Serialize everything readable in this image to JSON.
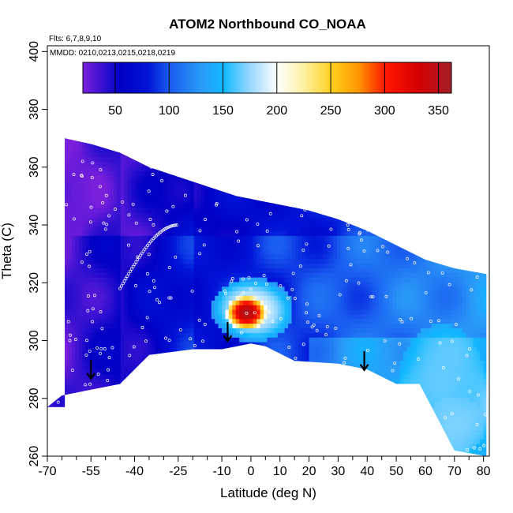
{
  "chart_data": {
    "type": "heatmap",
    "title": "ATOM2 Northbound CO_NOAA",
    "subtitle_flights": "Flts: 6,7,8,9,10",
    "subtitle_dates": "MMDD: 0210,0213,0215,0218,0219",
    "xlabel": "Latitude (deg N)",
    "ylabel": "Theta (C)",
    "xlim": [
      -70,
      82
    ],
    "ylim": [
      260,
      402
    ],
    "x_ticks": [
      -70,
      -55,
      -40,
      -25,
      -10,
      0,
      10,
      20,
      30,
      40,
      50,
      60,
      70,
      80
    ],
    "x_minor_ticks": [
      -65,
      -60,
      -50,
      -45,
      -35,
      -30,
      -20,
      -15,
      -5,
      5,
      15,
      25,
      35,
      45,
      55,
      65,
      75
    ],
    "y_ticks": [
      260,
      280,
      300,
      320,
      340,
      360,
      380,
      400
    ],
    "colorbar": {
      "range": [
        20,
        362
      ],
      "ticks": [
        50,
        100,
        150,
        200,
        250,
        300,
        350
      ],
      "colors": [
        {
          "v": 20,
          "c": "#7a1fdc"
        },
        {
          "v": 40,
          "c": "#2e0fd0"
        },
        {
          "v": 55,
          "c": "#0000c4"
        },
        {
          "v": 80,
          "c": "#0014d8"
        },
        {
          "v": 100,
          "c": "#1a5cf0"
        },
        {
          "v": 130,
          "c": "#2a9cf8"
        },
        {
          "v": 150,
          "c": "#10b8ff"
        },
        {
          "v": 175,
          "c": "#9ad8ff"
        },
        {
          "v": 200,
          "c": "#ffffff"
        },
        {
          "v": 225,
          "c": "#fff0a0"
        },
        {
          "v": 250,
          "c": "#ffd020"
        },
        {
          "v": 275,
          "c": "#ff9800"
        },
        {
          "v": 300,
          "c": "#ff1800"
        },
        {
          "v": 330,
          "c": "#d80000"
        },
        {
          "v": 362,
          "c": "#a02028"
        }
      ]
    },
    "field": {
      "top_boundary": [
        [
          -64,
          370
        ],
        [
          -55,
          368
        ],
        [
          -45,
          365
        ],
        [
          -35,
          360
        ],
        [
          -20,
          355
        ],
        [
          -5,
          350
        ],
        [
          10,
          347
        ],
        [
          20,
          345
        ],
        [
          30,
          342
        ],
        [
          40,
          338
        ],
        [
          50,
          333
        ],
        [
          60,
          328
        ],
        [
          70,
          325
        ],
        [
          81,
          323
        ]
      ],
      "bottom_boundary": [
        [
          -70,
          277
        ],
        [
          -65,
          281
        ],
        [
          -55,
          283
        ],
        [
          -45,
          285
        ],
        [
          -35,
          295
        ],
        [
          -20,
          297
        ],
        [
          -10,
          297
        ],
        [
          0,
          299
        ],
        [
          5,
          298
        ],
        [
          15,
          293
        ],
        [
          30,
          292
        ],
        [
          40,
          290
        ],
        [
          50,
          285
        ],
        [
          58,
          285
        ],
        [
          70,
          262
        ],
        [
          81,
          260
        ]
      ],
      "anomalies": [
        {
          "lat": -2,
          "theta": 309,
          "value": 355,
          "w": 14,
          "h": 12
        },
        {
          "lat": 0,
          "theta": 310,
          "value": 200,
          "w": 28,
          "h": 22
        },
        {
          "lat": 65,
          "theta": 285,
          "value": 165,
          "w": 30,
          "h": 40
        },
        {
          "lat": 70,
          "theta": 270,
          "value": 170,
          "w": 20,
          "h": 20
        },
        {
          "lat": -62,
          "theta": 340,
          "value": 25,
          "w": 16,
          "h": 60
        }
      ]
    },
    "arrows": [
      {
        "lat": -55,
        "theta": 289
      },
      {
        "lat": -8,
        "theta": 302
      },
      {
        "lat": 39,
        "theta": 292
      }
    ]
  }
}
